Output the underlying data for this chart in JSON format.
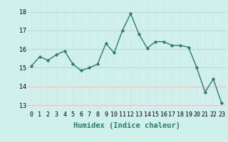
{
  "x": [
    0,
    1,
    2,
    3,
    4,
    5,
    6,
    7,
    8,
    9,
    10,
    11,
    12,
    13,
    14,
    15,
    16,
    17,
    18,
    19,
    20,
    21,
    22,
    23
  ],
  "y": [
    15.1,
    15.6,
    15.4,
    15.7,
    15.9,
    15.2,
    14.85,
    15.0,
    15.2,
    16.3,
    15.8,
    17.0,
    17.9,
    16.8,
    16.05,
    16.4,
    16.4,
    16.2,
    16.2,
    16.1,
    15.0,
    13.7,
    14.4,
    13.1
  ],
  "line_color": "#2d7a6e",
  "marker": "D",
  "marker_size": 2.2,
  "linewidth": 1.0,
  "bg_color": "#cff0eb",
  "grid_color_major": "#e8b8b8",
  "grid_color_minor": "#cde8e4",
  "xlabel": "Humidex (Indice chaleur)",
  "xlabel_fontsize": 7.5,
  "tick_fontsize": 6.0,
  "yticks": [
    13,
    14,
    15,
    16,
    17,
    18
  ],
  "xticks": [
    0,
    1,
    2,
    3,
    4,
    5,
    6,
    7,
    8,
    9,
    10,
    11,
    12,
    13,
    14,
    15,
    16,
    17,
    18,
    19,
    20,
    21,
    22,
    23
  ],
  "ylim": [
    12.7,
    18.4
  ],
  "xlim": [
    -0.5,
    23.5
  ]
}
